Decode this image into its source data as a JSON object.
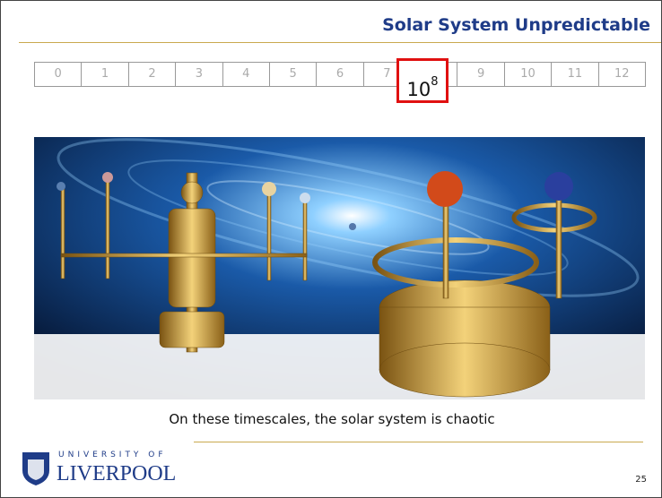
{
  "header": {
    "title": "Solar System Unpredictable"
  },
  "scale": {
    "cells": [
      "0",
      "1",
      "2",
      "3",
      "4",
      "5",
      "6",
      "7",
      "9",
      "10",
      "11",
      "12"
    ],
    "highlight": {
      "base": "10",
      "exponent": "8"
    }
  },
  "caption": "On these timescales, the solar system is chaotic",
  "footer": {
    "logo_top": "UNIVERSITY OF",
    "logo_name": "LIVERPOOL",
    "page_number": "25"
  }
}
